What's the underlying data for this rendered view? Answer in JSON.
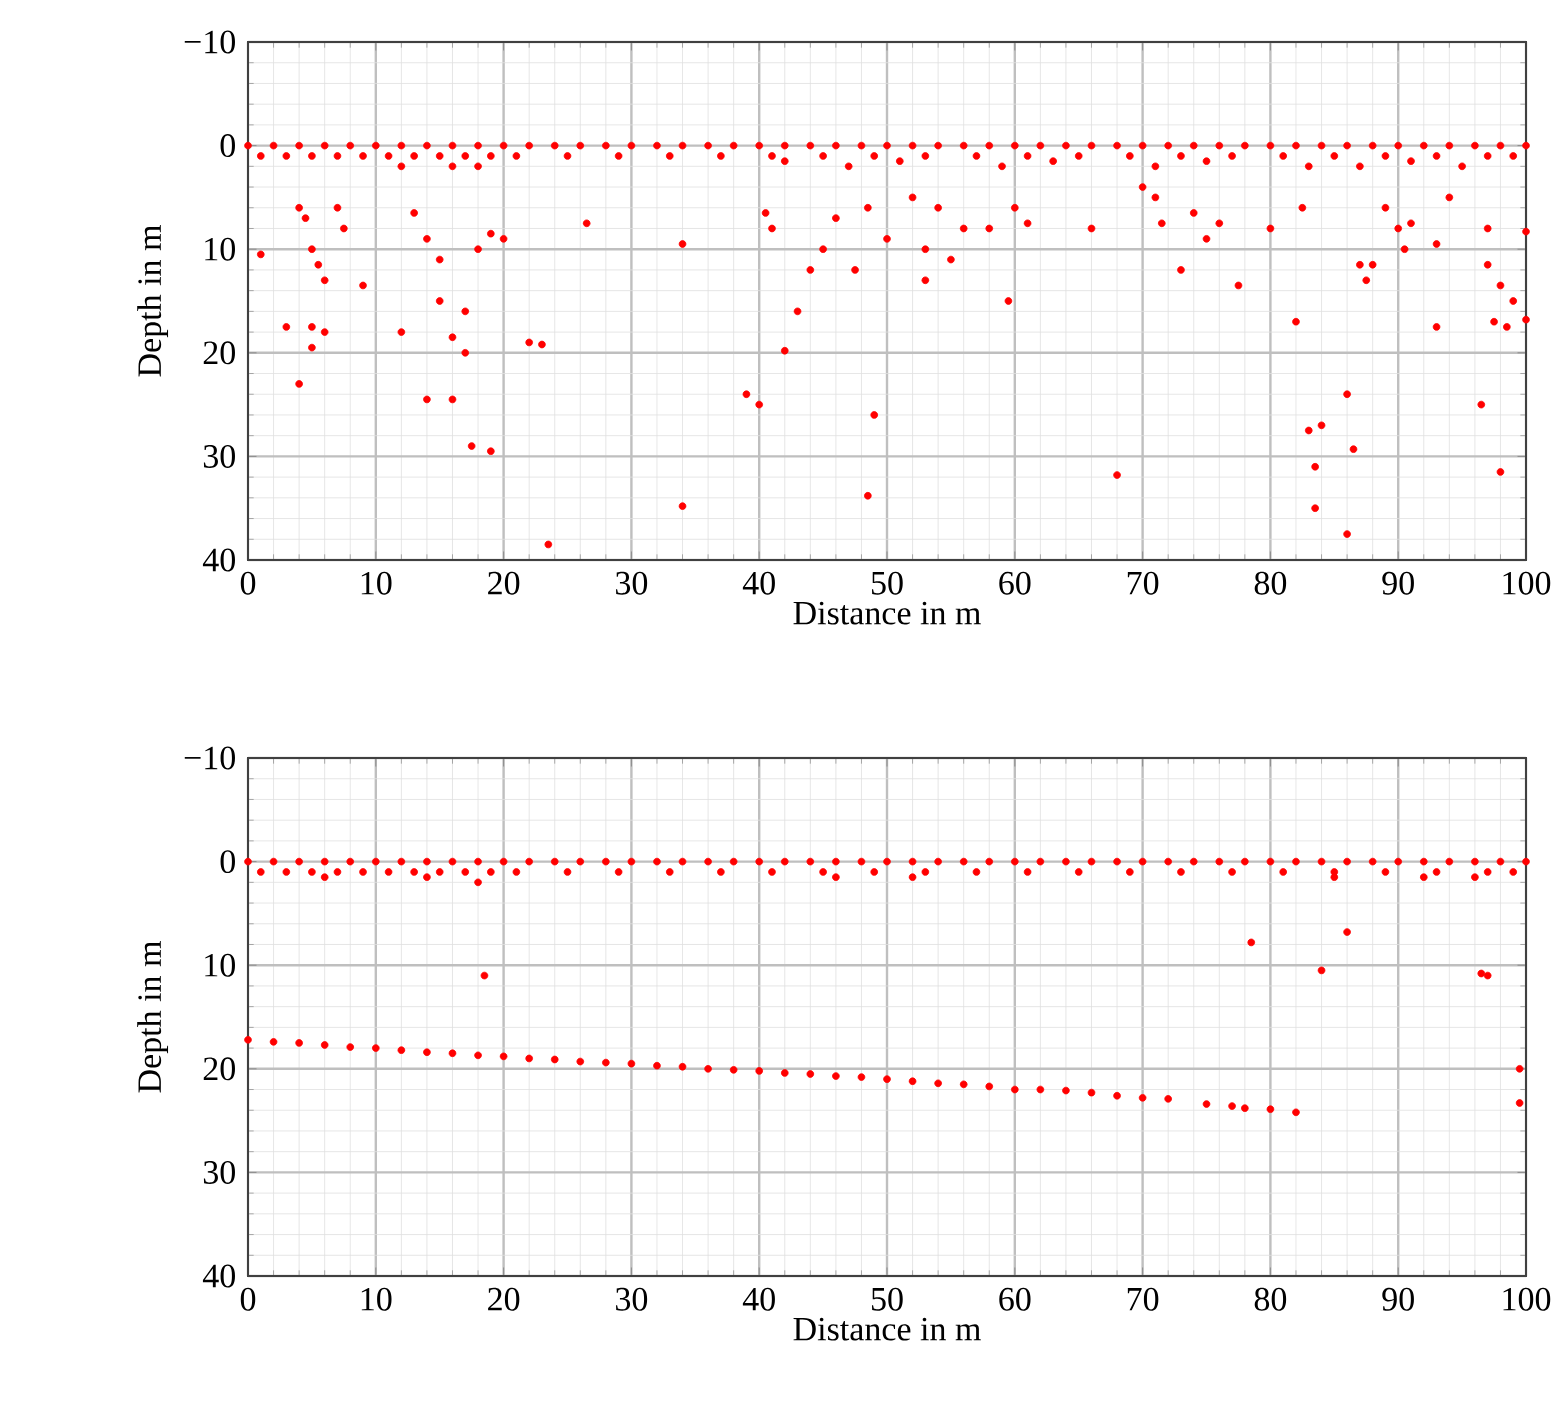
{
  "chart_data": [
    {
      "type": "scatter",
      "xlabel": "Distance in m",
      "ylabel": "Depth in m",
      "xlim": [
        0,
        100
      ],
      "ylim": [
        40,
        -10
      ],
      "xticks": [
        0,
        10,
        20,
        30,
        40,
        50,
        60,
        70,
        80,
        90,
        100
      ],
      "yticks": [
        {
          "value": -10,
          "label": "−10"
        },
        0,
        10,
        20,
        30,
        40
      ],
      "grid": true,
      "series": [
        {
          "color": "#ff0000",
          "x": [
            0,
            2,
            4,
            6,
            8,
            10,
            12,
            14,
            16,
            18,
            20,
            22,
            24,
            26,
            28,
            30,
            32,
            34,
            36,
            38,
            40,
            42,
            44,
            46,
            48,
            50,
            52,
            54,
            56,
            58,
            60,
            62,
            64,
            66,
            68,
            70,
            72,
            74,
            76,
            78,
            80,
            82,
            84,
            86,
            88,
            90,
            92,
            94,
            96,
            98,
            100,
            1,
            3,
            5,
            7,
            9,
            11,
            13,
            15,
            17,
            19,
            21,
            25,
            29,
            33,
            37,
            41,
            45,
            49,
            53,
            57,
            61,
            65,
            69,
            73,
            77,
            81,
            85,
            89,
            93,
            97,
            99,
            12,
            16,
            18,
            42,
            47,
            51,
            59,
            63,
            71,
            75,
            83,
            87,
            91,
            95,
            1,
            4,
            4.5,
            5,
            5.5,
            6,
            7,
            7.5,
            6,
            3,
            5,
            4,
            5,
            9,
            12,
            13,
            14,
            14,
            15,
            15,
            16,
            16,
            17,
            17,
            17.5,
            19,
            18,
            19,
            20,
            22,
            23,
            23.5,
            26.5,
            34,
            34,
            39,
            40,
            40.5,
            41,
            42,
            43,
            44,
            45,
            46,
            47.5,
            48.5,
            49,
            48.5,
            50,
            52,
            53,
            53,
            54,
            55,
            56,
            58,
            59.5,
            60,
            61,
            66,
            68,
            70,
            71,
            71.5,
            73,
            74,
            75,
            76,
            77.5,
            80,
            82,
            82.5,
            83,
            83.5,
            83.5,
            84,
            86,
            86.5,
            86,
            87,
            87.5,
            88,
            89,
            90,
            90.5,
            91,
            93,
            93,
            94,
            96.5,
            97,
            97.5,
            98,
            98,
            98.5,
            99,
            100,
            97,
            100
          ],
          "values": [
            0,
            0,
            0,
            0,
            0,
            0,
            0,
            0,
            0,
            0,
            0,
            0,
            0,
            0,
            0,
            0,
            0,
            0,
            0,
            0,
            0,
            0,
            0,
            0,
            0,
            0,
            0,
            0,
            0,
            0,
            0,
            0,
            0,
            0,
            0,
            0,
            0,
            0,
            0,
            0,
            0,
            0,
            0,
            0,
            0,
            0,
            0,
            0,
            0,
            0,
            0,
            1,
            1,
            1,
            1,
            1,
            1,
            1,
            1,
            1,
            1,
            1,
            1,
            1,
            1,
            1,
            1,
            1,
            1,
            1,
            1,
            1,
            1,
            1,
            1,
            1,
            1,
            1,
            1,
            1,
            1,
            1,
            2,
            2,
            2,
            1.5,
            2,
            1.5,
            2,
            1.5,
            2,
            1.5,
            2,
            2,
            1.5,
            2,
            10.5,
            6,
            7,
            10,
            11.5,
            13,
            6,
            8,
            18,
            17.5,
            17.5,
            23,
            19.5,
            13.5,
            18,
            6.5,
            9,
            24.5,
            11,
            15,
            18.5,
            24.5,
            16,
            20,
            29,
            29.5,
            10,
            8.5,
            9,
            19,
            19.2,
            38.5,
            7.5,
            9.5,
            34.8,
            24,
            25,
            6.5,
            8,
            19.8,
            16,
            12,
            10,
            7,
            12,
            6,
            26,
            33.8,
            9,
            5,
            13,
            10,
            6,
            11,
            8,
            8,
            15,
            6,
            7.5,
            8,
            31.8,
            4,
            5,
            7.5,
            12,
            6.5,
            9,
            7.5,
            13.5,
            8,
            17,
            6,
            27.5,
            35,
            31,
            27,
            24,
            29.3,
            37.5,
            11.5,
            13,
            11.5,
            6,
            8,
            10,
            7.5,
            9.5,
            17.5,
            5,
            25,
            11.5,
            17,
            31.5,
            13.5,
            17.5,
            15,
            16.8,
            8,
            8.3
          ]
        }
      ]
    },
    {
      "type": "scatter",
      "xlabel": "Distance in m",
      "ylabel": "Depth in m",
      "xlim": [
        0,
        100
      ],
      "ylim": [
        40,
        -10
      ],
      "xticks": [
        0,
        10,
        20,
        30,
        40,
        50,
        60,
        70,
        80,
        90,
        100
      ],
      "yticks": [
        {
          "value": -10,
          "label": "−10"
        },
        0,
        10,
        20,
        30,
        40
      ],
      "grid": true,
      "series": [
        {
          "color": "#ff0000",
          "x": [
            0,
            2,
            4,
            6,
            8,
            10,
            12,
            14,
            16,
            18,
            20,
            22,
            24,
            26,
            28,
            30,
            32,
            34,
            36,
            38,
            40,
            42,
            44,
            46,
            48,
            50,
            52,
            54,
            56,
            58,
            60,
            62,
            64,
            66,
            68,
            70,
            72,
            74,
            76,
            78,
            80,
            82,
            84,
            86,
            88,
            90,
            92,
            94,
            96,
            98,
            100,
            1,
            3,
            5,
            7,
            9,
            11,
            13,
            15,
            17,
            19,
            21,
            25,
            29,
            33,
            37,
            41,
            45,
            49,
            53,
            57,
            61,
            65,
            69,
            73,
            77,
            81,
            85,
            89,
            93,
            97,
            99,
            6,
            14,
            18,
            46,
            52,
            85,
            92,
            96,
            18.5,
            78.5,
            84,
            86,
            96.5,
            97,
            99.5,
            99.5,
            0,
            2,
            4,
            6,
            8,
            10,
            12,
            14,
            16,
            18,
            20,
            22,
            24,
            26,
            28,
            30,
            32,
            34,
            36,
            38,
            40,
            42,
            44,
            46,
            48,
            50,
            52,
            54,
            56,
            58,
            60,
            62,
            64,
            66,
            68,
            70,
            72,
            75,
            77,
            78,
            80,
            82
          ],
          "values": [
            0,
            0,
            0,
            0,
            0,
            0,
            0,
            0,
            0,
            0,
            0,
            0,
            0,
            0,
            0,
            0,
            0,
            0,
            0,
            0,
            0,
            0,
            0,
            0,
            0,
            0,
            0,
            0,
            0,
            0,
            0,
            0,
            0,
            0,
            0,
            0,
            0,
            0,
            0,
            0,
            0,
            0,
            0,
            0,
            0,
            0,
            0,
            0,
            0,
            0,
            0,
            1,
            1,
            1,
            1,
            1,
            1,
            1,
            1,
            1,
            1,
            1,
            1,
            1,
            1,
            1,
            1,
            1,
            1,
            1,
            1,
            1,
            1,
            1,
            1,
            1,
            1,
            1,
            1,
            1,
            1,
            1,
            1.5,
            1.5,
            2,
            1.5,
            1.5,
            1.5,
            1.5,
            1.5,
            11,
            7.8,
            10.5,
            6.8,
            10.8,
            11,
            20,
            23.3,
            17.2,
            17.4,
            17.5,
            17.7,
            17.9,
            18,
            18.2,
            18.4,
            18.5,
            18.7,
            18.8,
            19,
            19.1,
            19.3,
            19.4,
            19.5,
            19.7,
            19.8,
            20,
            20.1,
            20.2,
            20.4,
            20.5,
            20.7,
            20.8,
            21,
            21.2,
            21.4,
            21.5,
            21.7,
            22,
            22,
            22.1,
            22.3,
            22.6,
            22.8,
            22.9,
            23.4,
            23.6,
            23.8,
            23.9,
            24.2
          ]
        }
      ]
    }
  ]
}
